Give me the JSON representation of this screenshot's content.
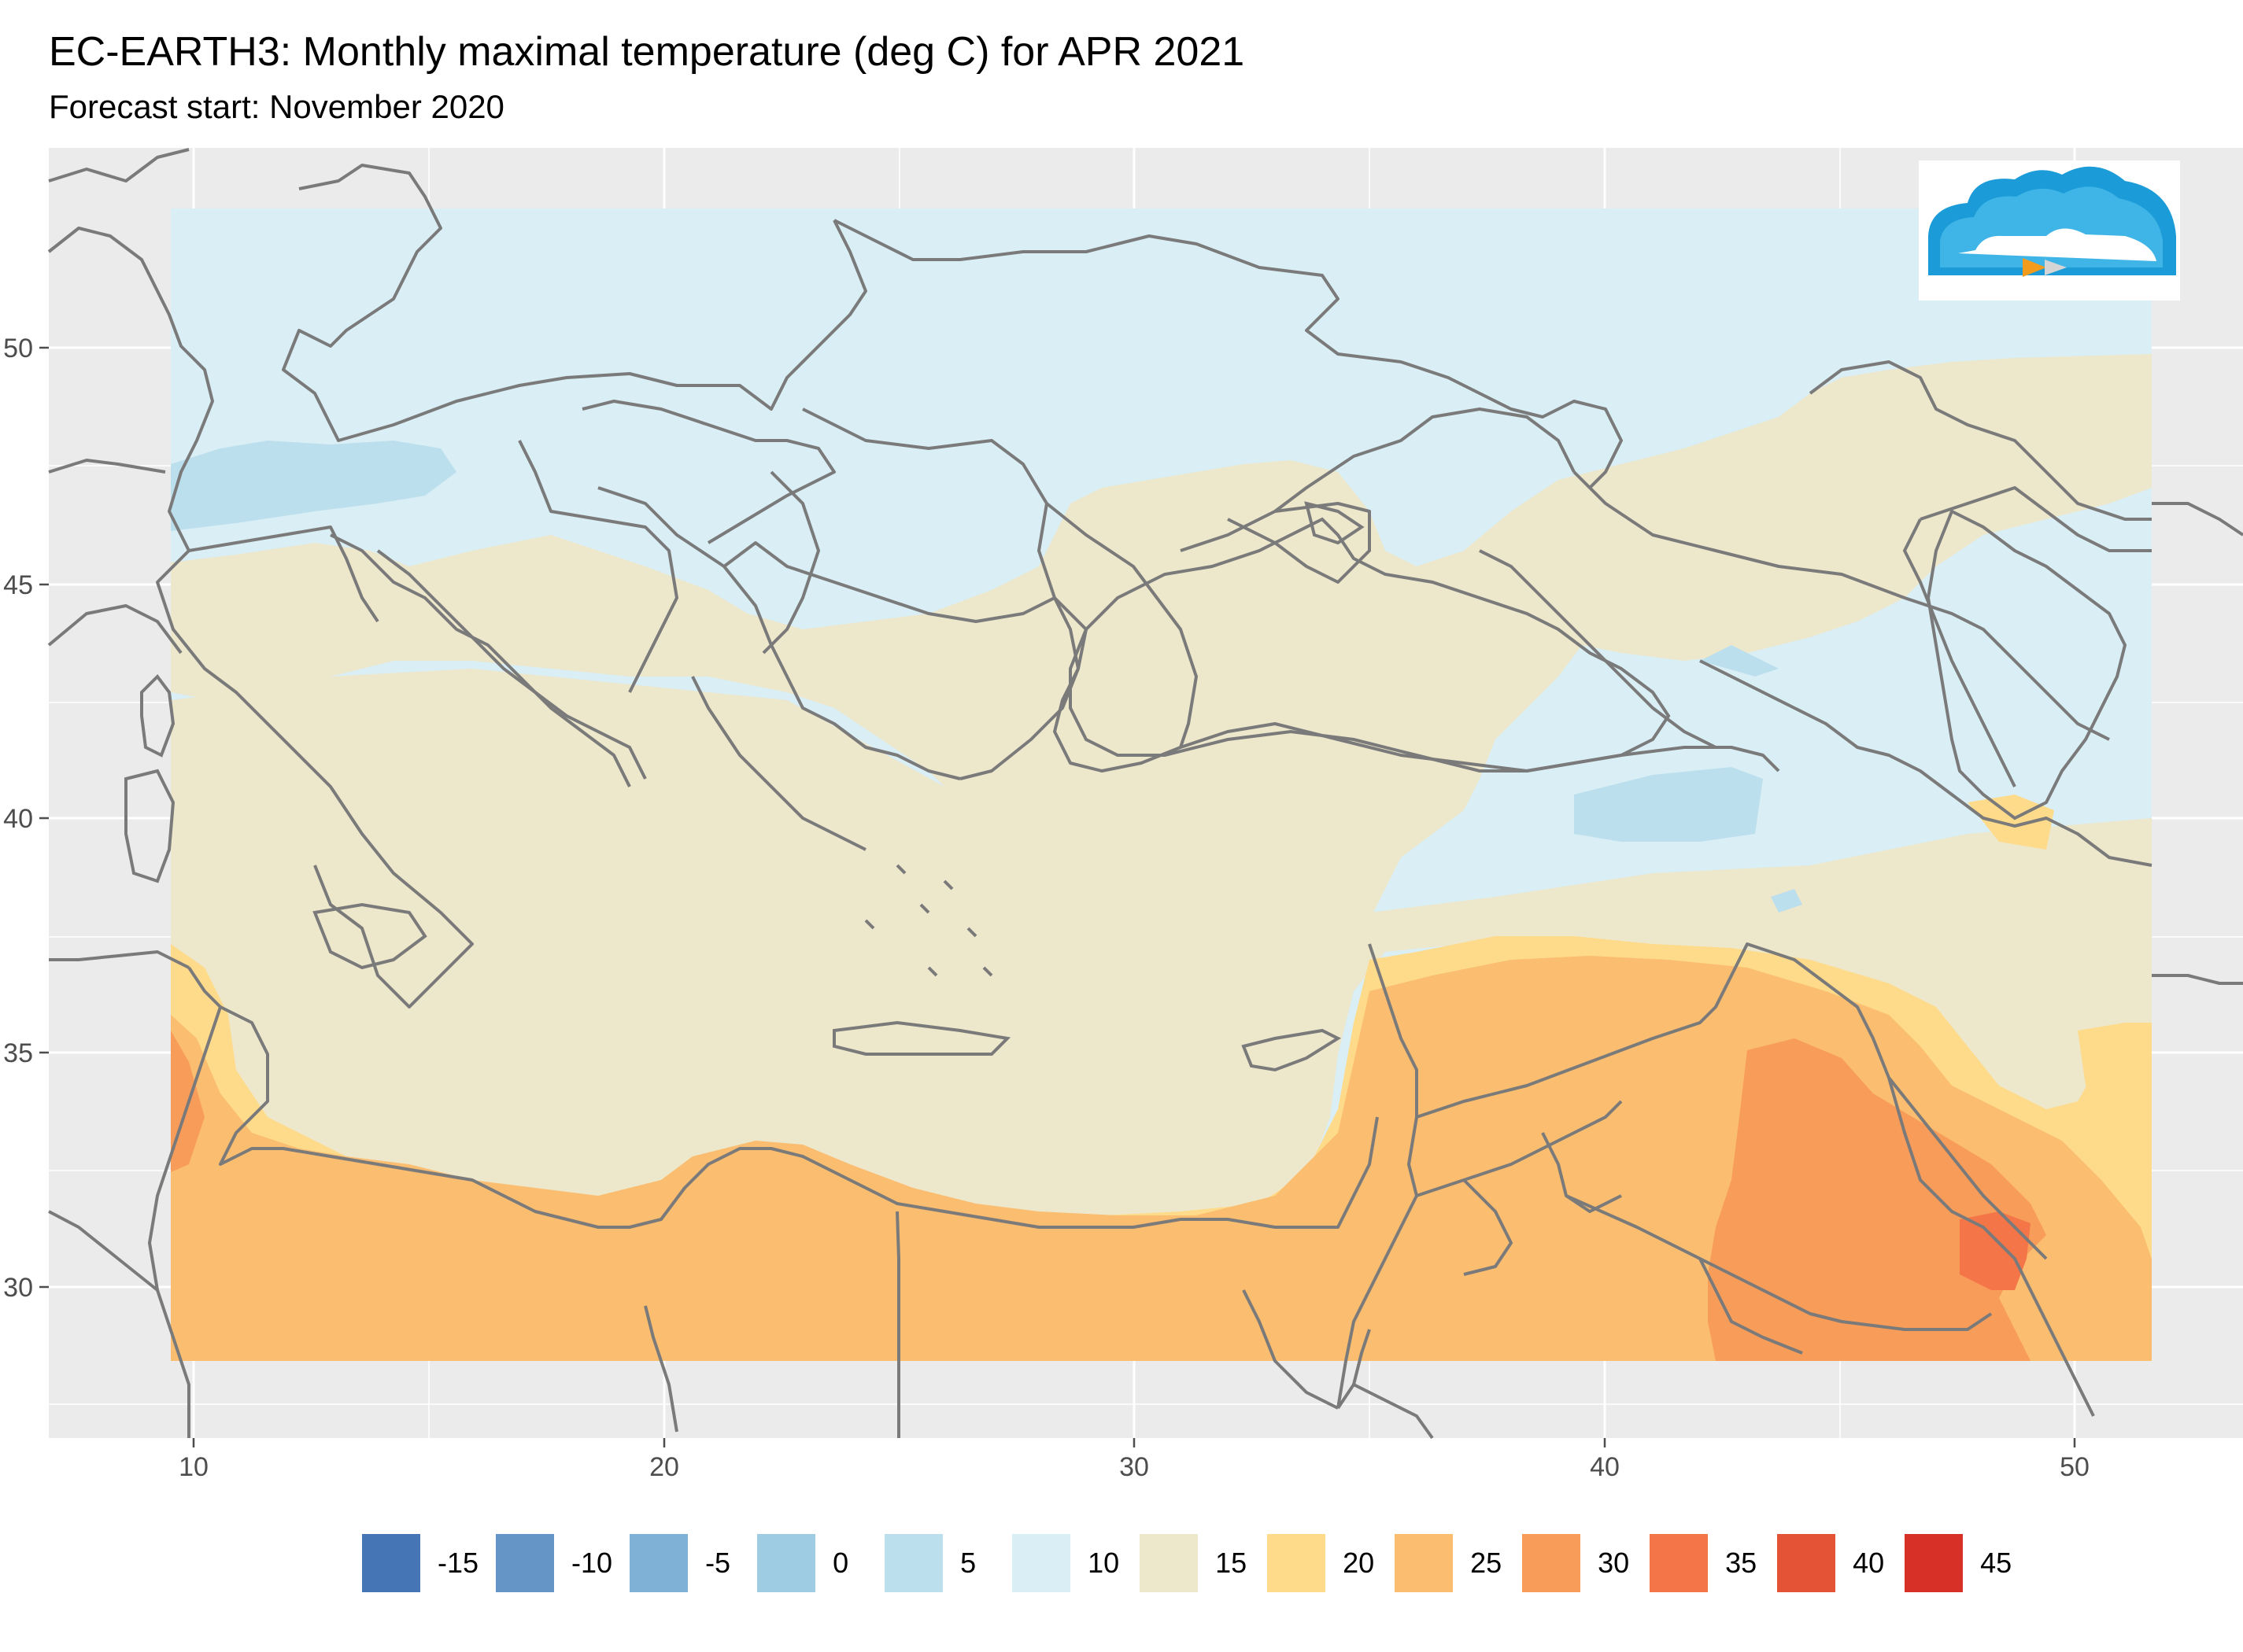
{
  "title": "EC-EARTH3: Monthly maximal temperature (deg C) for APR 2021",
  "subtitle": "Forecast start: November 2020",
  "map": {
    "panel_color": "#ebebeb",
    "grid_color": "#ffffff",
    "border_color": "#7a7a7a",
    "lon_range": [
      6.9,
      53.7
    ],
    "lat_range": [
      26.8,
      53.9
    ],
    "field_extent": {
      "lon": [
        9.5,
        51.7
      ],
      "lat": [
        28.5,
        53.0
      ]
    },
    "x_ticks": [
      "10",
      "20",
      "30",
      "40",
      "50"
    ],
    "y_ticks": [
      "50",
      "45",
      "40",
      "35",
      "30"
    ],
    "logo_icon": "cloud-logo-icon"
  },
  "legend": {
    "items": [
      {
        "label": "-15",
        "color": "#4575b4"
      },
      {
        "label": "-10",
        "color": "#6495c6"
      },
      {
        "label": "-5",
        "color": "#7fb0d6"
      },
      {
        "label": "0",
        "color": "#9ecde3"
      },
      {
        "label": "5",
        "color": "#bcdfee"
      },
      {
        "label": "10",
        "color": "#daeef5"
      },
      {
        "label": "15",
        "color": "#ede7cb"
      },
      {
        "label": "20",
        "color": "#fedb8b"
      },
      {
        "label": "25",
        "color": "#fbbd6f"
      },
      {
        "label": "30",
        "color": "#f89c59"
      },
      {
        "label": "35",
        "color": "#f47648"
      },
      {
        "label": "40",
        "color": "#e55336"
      },
      {
        "label": "45",
        "color": "#d73027"
      }
    ]
  }
}
